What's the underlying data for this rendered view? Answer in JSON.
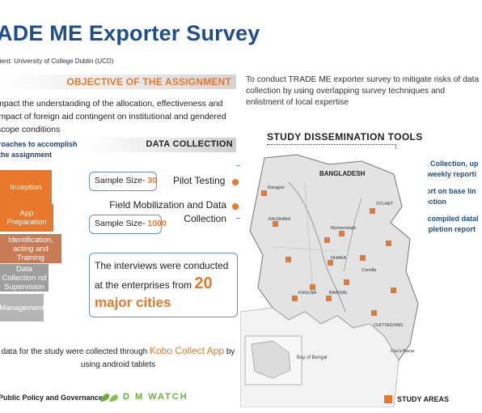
{
  "title": "ADE ME Exporter Survey",
  "client": "lient: University of College Dublin (UCD)",
  "objective": {
    "heading": "OBJECTIVE OF THE ASSIGNMENT",
    "text": "mpact the understanding of the allocation, effectiveness and impact of foreign aid contingent on institutional and gendered scope conditions"
  },
  "intro": "To conduct TRADE ME exporter survey to mitigate risks of data collection by using overlapping survey techniques and enlistment of local expertise",
  "approach": {
    "heading": "roaches to accomplish the assignment",
    "steps": [
      "Inception",
      "App Preparation",
      "Identification, acting and Training",
      "Data Collection nd Supervision",
      "Management"
    ]
  },
  "data_collection": {
    "heading": "DATA COLLECTION",
    "sample1_label": "Sample Size- ",
    "sample1_value": "30",
    "sample2_label": "Sample Size- ",
    "sample2_value": "1000",
    "pilot": "Pilot Testing",
    "field": "Field Mobilization and Data Collection",
    "interview_pre": "The interviews were conducted at the enterprises from",
    "interview_num": "20",
    "interview_cities": "major cities"
  },
  "kobo": {
    "pre": "data for the study were collected through ",
    "app": "Kobo Collect App",
    "post": " by using android tablets"
  },
  "footer": {
    "left": "Public Policy and Governance",
    "logo": "D M WATCH"
  },
  "tools": {
    "heading": "STUDY DISSEMINATION TOOLS",
    "items": [
      "Data Collection, up and weekly reporti",
      "Report on base lin collection",
      "and compiled datal Completion report"
    ]
  },
  "map": {
    "country": "BANGLADESH",
    "bay": "Bay of Bengal",
    "legend": "STUDY AREAS",
    "cities": [
      "RAJSHAHI",
      "DHAKA",
      "KHULNA",
      "BARISAL",
      "CHITTAGONG",
      "SYLHET",
      "Rangpur",
      "Mymensingh",
      "Comilla",
      "Cox's Bazar"
    ]
  },
  "colors": {
    "title_blue": "#1f4e8c",
    "accent_orange": "#e8782b",
    "dark_navy": "#1f3f75",
    "logo_green": "#6cae3b"
  }
}
